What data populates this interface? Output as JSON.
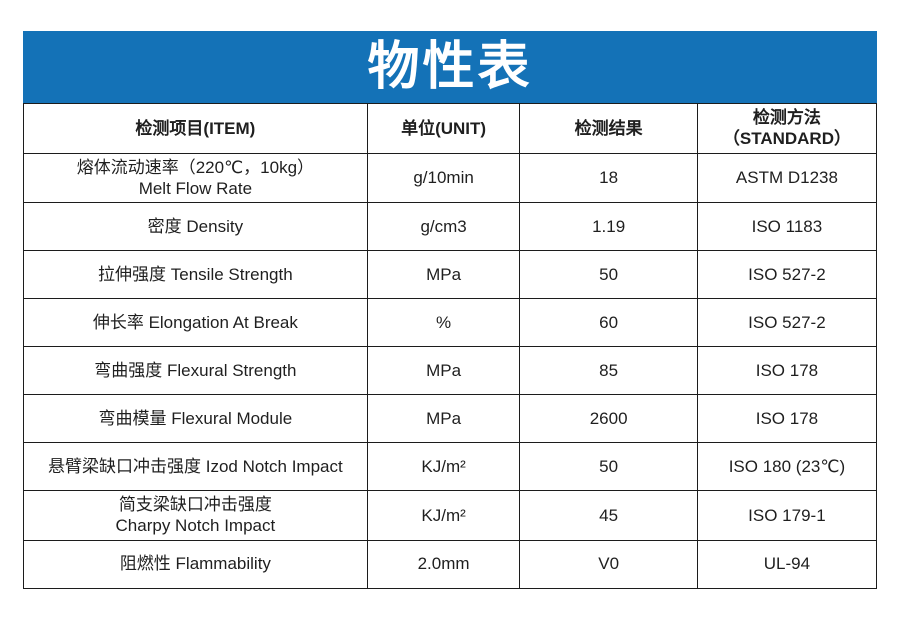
{
  "title": "物性表",
  "colors": {
    "banner_background": "#1472b7",
    "title_text": "#ffffff",
    "table_border": "#1c1c1c",
    "body_text": "#1f1f1f",
    "page_background": "#ffffff"
  },
  "table": {
    "headers": {
      "item": "检测项目(ITEM)",
      "unit": "单位(UNIT)",
      "result": "检测结果",
      "standard": "检测方法\n（STANDARD）"
    },
    "rows": [
      {
        "item": "熔体流动速率（220℃，10kg）\nMelt Flow Rate",
        "unit": "g/10min",
        "result": "18",
        "standard": "ASTM D1238"
      },
      {
        "item": "密度 Density",
        "unit": "g/cm3",
        "result": "1.19",
        "standard": "ISO 1183"
      },
      {
        "item": "拉伸强度 Tensile Strength",
        "unit": "MPa",
        "result": "50",
        "standard": "ISO 527-2"
      },
      {
        "item": "伸长率 Elongation At Break",
        "unit": "%",
        "result": "60",
        "standard": "ISO 527-2"
      },
      {
        "item": "弯曲强度 Flexural Strength",
        "unit": "MPa",
        "result": "85",
        "standard": "ISO 178"
      },
      {
        "item": "弯曲模量 Flexural Module",
        "unit": "MPa",
        "result": "2600",
        "standard": "ISO 178"
      },
      {
        "item": "悬臂梁缺口冲击强度 Izod Notch Impact",
        "unit": "KJ/m²",
        "result": "50",
        "standard": "ISO 180 (23℃)"
      },
      {
        "item": "简支梁缺口冲击强度\nCharpy Notch Impact",
        "unit": "KJ/m²",
        "result": "45",
        "standard": "ISO 179-1"
      },
      {
        "item": "阻燃性 Flammability",
        "unit": "2.0mm",
        "result": "V0",
        "standard": "UL-94"
      }
    ]
  }
}
